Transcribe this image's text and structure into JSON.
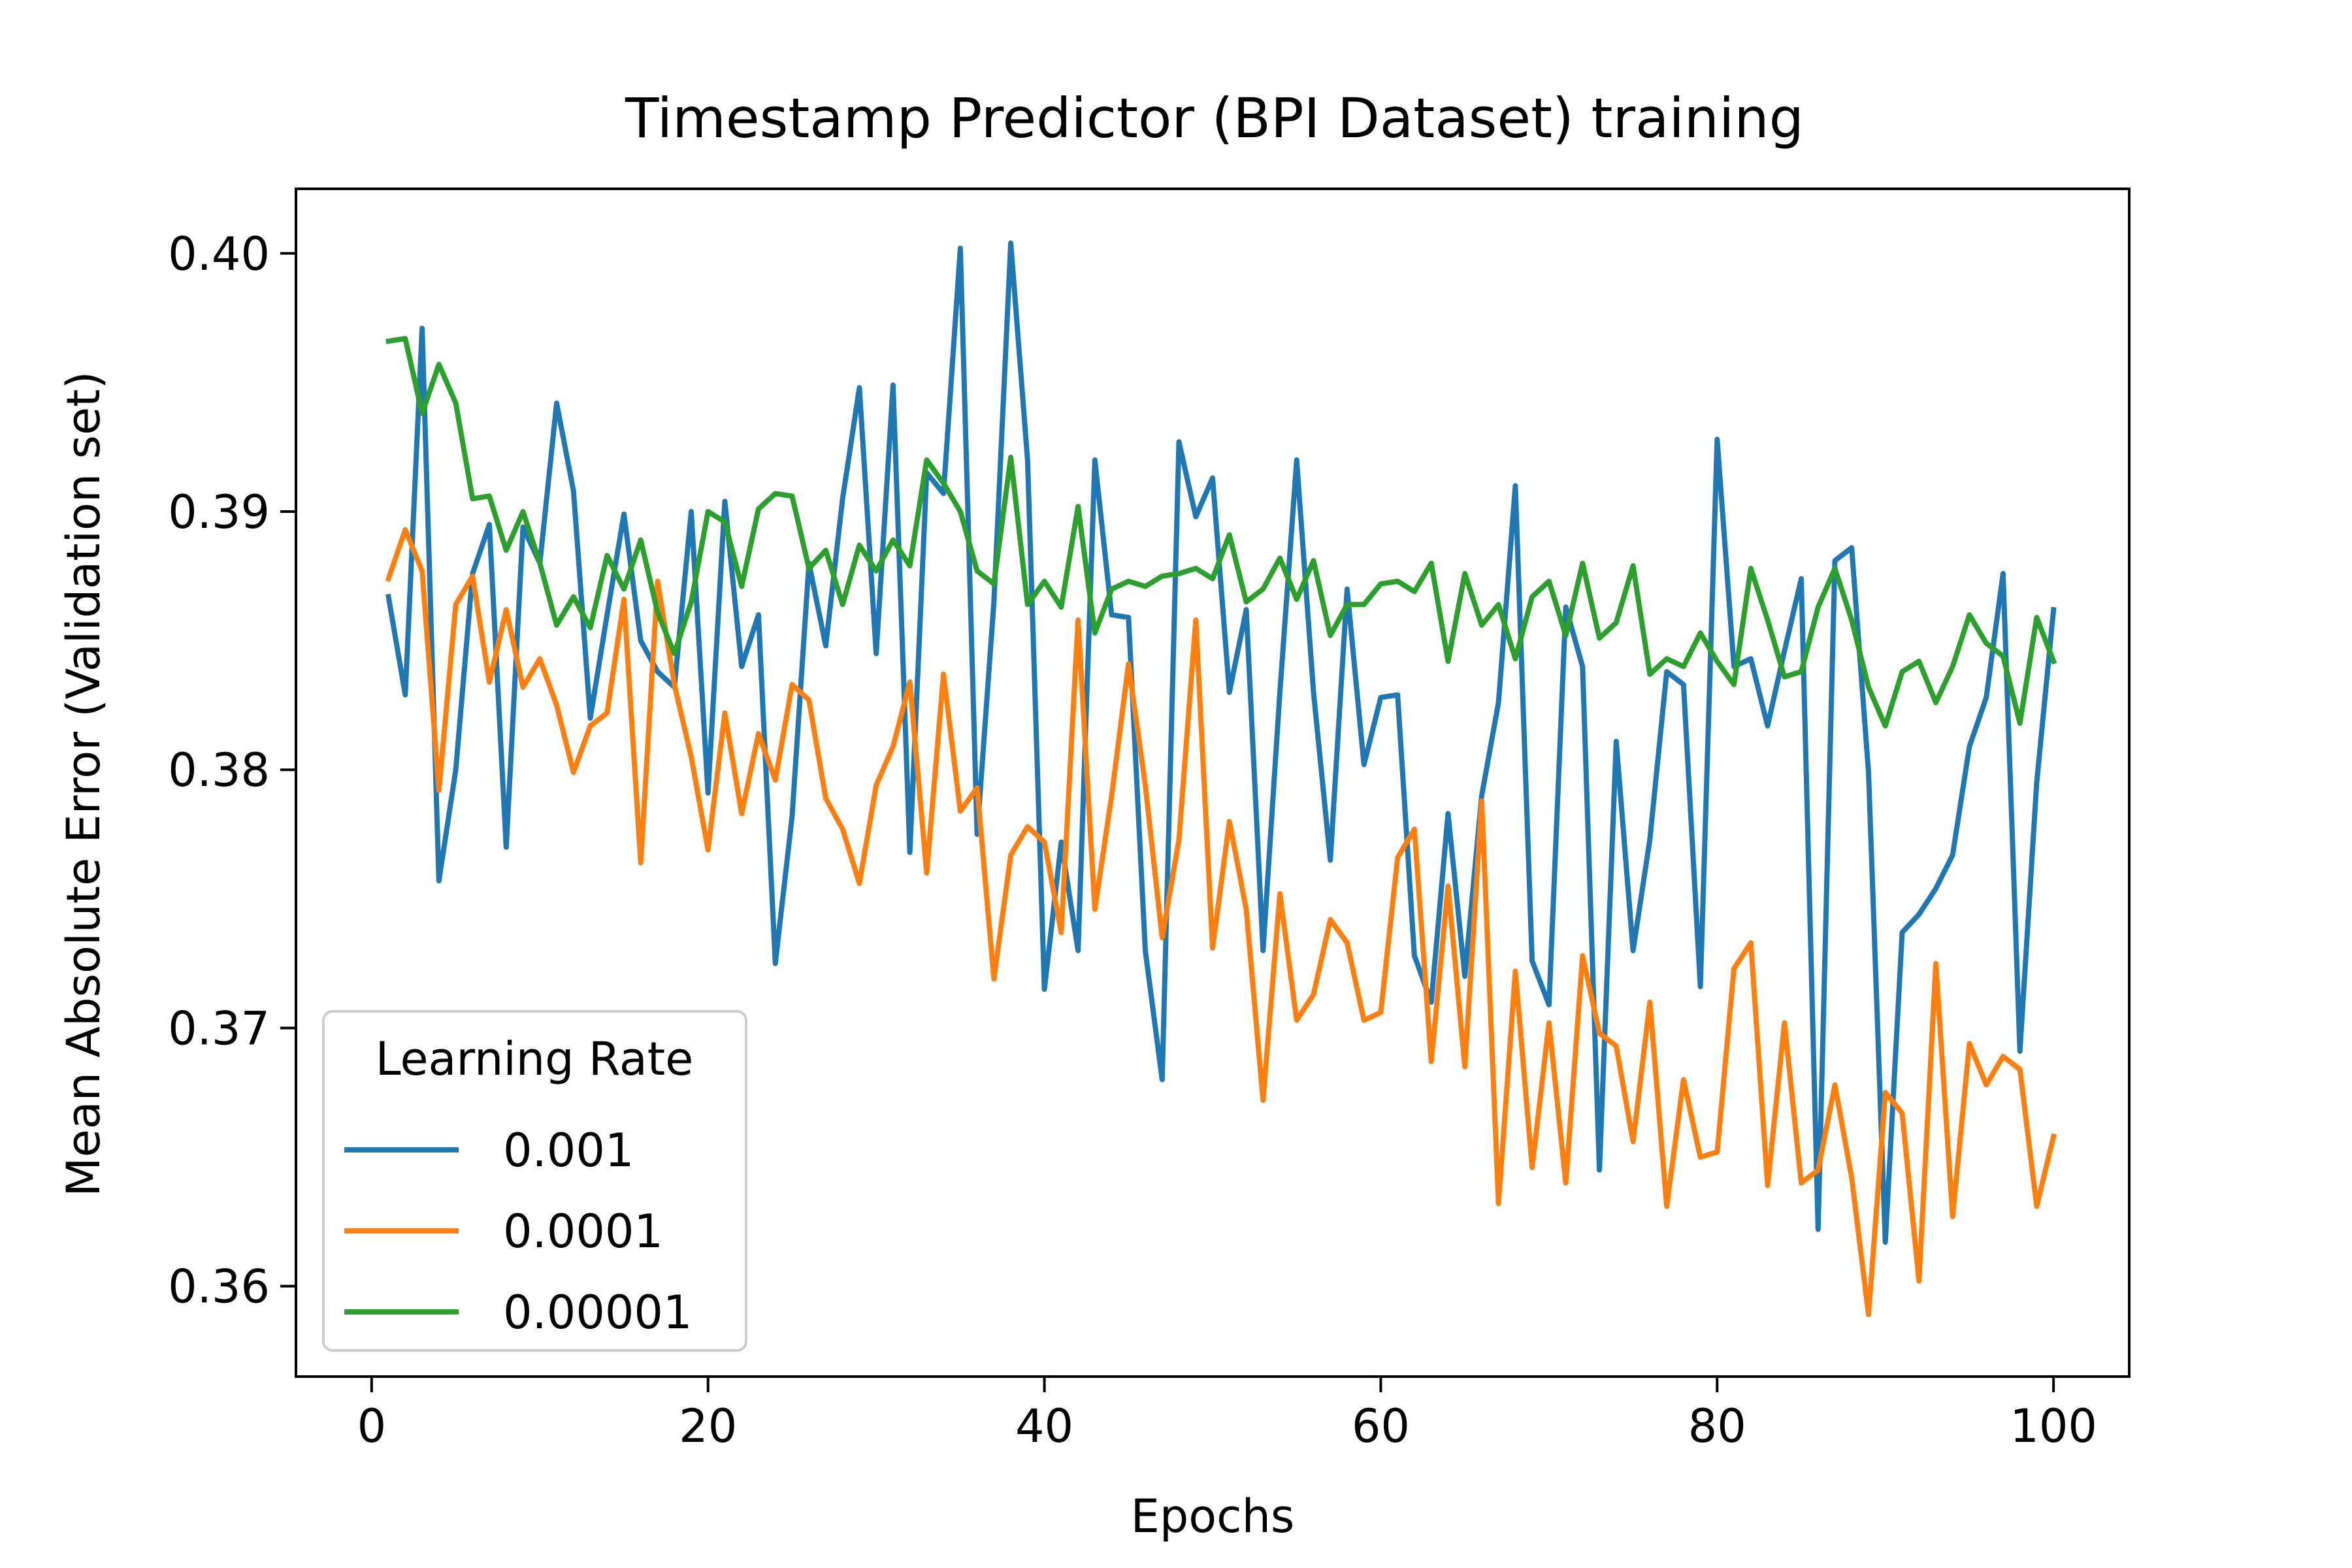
{
  "chart_data": {
    "type": "line",
    "title": "Timestamp Predictor (BPI Dataset) training",
    "xlabel": "Epochs",
    "ylabel": "Mean Absolute Error (Validation set)",
    "xlim": [
      -4.5,
      104.5
    ],
    "ylim": [
      0.3565,
      0.4025
    ],
    "xticks": [
      0,
      20,
      40,
      60,
      80,
      100
    ],
    "xtick_labels": [
      "0",
      "20",
      "40",
      "60",
      "80",
      "100"
    ],
    "yticks": [
      0.36,
      0.37,
      0.38,
      0.39,
      0.4
    ],
    "ytick_labels": [
      "0.36",
      "0.37",
      "0.38",
      "0.39",
      "0.40"
    ],
    "grid": false,
    "legend": {
      "title": "Learning Rate",
      "placement": "lower-left"
    },
    "x": [
      1,
      2,
      3,
      4,
      5,
      6,
      7,
      8,
      9,
      10,
      11,
      12,
      13,
      14,
      15,
      16,
      17,
      18,
      19,
      20,
      21,
      22,
      23,
      24,
      25,
      26,
      27,
      28,
      29,
      30,
      31,
      32,
      33,
      34,
      35,
      36,
      37,
      38,
      39,
      40,
      41,
      42,
      43,
      44,
      45,
      46,
      47,
      48,
      49,
      50,
      51,
      52,
      53,
      54,
      55,
      56,
      57,
      58,
      59,
      60,
      61,
      62,
      63,
      64,
      65,
      66,
      67,
      68,
      69,
      70,
      71,
      72,
      73,
      74,
      75,
      76,
      77,
      78,
      79,
      80,
      81,
      82,
      83,
      84,
      85,
      86,
      87,
      88,
      89,
      90,
      91,
      92,
      93,
      94,
      95,
      96,
      97,
      98,
      99,
      100
    ],
    "series": [
      {
        "name": "0.001",
        "color": "#1f77b4",
        "values": [
          0.3867,
          0.3829,
          0.3971,
          0.3757,
          0.38,
          0.3876,
          0.3895,
          0.377,
          0.3894,
          0.388,
          0.3942,
          0.3908,
          0.382,
          0.386,
          0.3899,
          0.385,
          0.3838,
          0.3832,
          0.39,
          0.3791,
          0.3904,
          0.384,
          0.386,
          0.3725,
          0.3782,
          0.388,
          0.3848,
          0.3905,
          0.3948,
          0.3845,
          0.3949,
          0.3768,
          0.3915,
          0.3907,
          0.4002,
          0.3775,
          0.3865,
          0.4004,
          0.392,
          0.3715,
          0.3772,
          0.373,
          0.392,
          0.386,
          0.3859,
          0.373,
          0.368,
          0.3927,
          0.3898,
          0.3913,
          0.383,
          0.3862,
          0.373,
          0.383,
          0.392,
          0.383,
          0.3765,
          0.387,
          0.3802,
          0.3828,
          0.3829,
          0.3728,
          0.371,
          0.3783,
          0.372,
          0.379,
          0.3826,
          0.391,
          0.3726,
          0.3709,
          0.3863,
          0.384,
          0.3645,
          0.3811,
          0.373,
          0.3773,
          0.3838,
          0.3833,
          0.3716,
          0.3928,
          0.384,
          0.3843,
          0.3817,
          0.3846,
          0.3874,
          0.3622,
          0.3881,
          0.3886,
          0.3799,
          0.3617,
          0.3737,
          0.3744,
          0.3754,
          0.3767,
          0.3809,
          0.3828,
          0.3876,
          0.3691,
          0.3795,
          0.3862
        ]
      },
      {
        "name": "0.0001",
        "color": "#ff7f0e",
        "values": [
          0.3874,
          0.3893,
          0.3877,
          0.3792,
          0.3864,
          0.3875,
          0.3834,
          0.3862,
          0.3832,
          0.3843,
          0.3825,
          0.3799,
          0.3817,
          0.3822,
          0.3866,
          0.3764,
          0.3873,
          0.3833,
          0.3805,
          0.3769,
          0.3822,
          0.3783,
          0.3814,
          0.3796,
          0.3833,
          0.3827,
          0.3789,
          0.3777,
          0.3756,
          0.3794,
          0.3809,
          0.3834,
          0.376,
          0.3837,
          0.3784,
          0.3793,
          0.3719,
          0.3767,
          0.3778,
          0.3772,
          0.3737,
          0.3858,
          0.3746,
          0.379,
          0.3841,
          0.3794,
          0.3735,
          0.3773,
          0.3858,
          0.3731,
          0.378,
          0.3746,
          0.3672,
          0.3752,
          0.3703,
          0.3713,
          0.3742,
          0.3733,
          0.3703,
          0.3706,
          0.3766,
          0.3777,
          0.3687,
          0.3755,
          0.3685,
          0.3788,
          0.3632,
          0.3722,
          0.3646,
          0.3702,
          0.364,
          0.3728,
          0.3698,
          0.3693,
          0.3656,
          0.371,
          0.3631,
          0.368,
          0.365,
          0.3652,
          0.3723,
          0.3733,
          0.3639,
          0.3702,
          0.364,
          0.3645,
          0.3678,
          0.3642,
          0.3589,
          0.3675,
          0.3667,
          0.3602,
          0.3725,
          0.3627,
          0.3694,
          0.3678,
          0.3689,
          0.3684,
          0.3631,
          0.3658
        ]
      },
      {
        "name": "0.00001",
        "color": "#2ca02c",
        "values": [
          0.3966,
          0.3967,
          0.3938,
          0.3957,
          0.3942,
          0.3905,
          0.3906,
          0.3885,
          0.39,
          0.388,
          0.3856,
          0.3867,
          0.3855,
          0.3883,
          0.387,
          0.3889,
          0.3861,
          0.3845,
          0.3865,
          0.39,
          0.3896,
          0.3871,
          0.3901,
          0.3907,
          0.3906,
          0.3878,
          0.3885,
          0.3864,
          0.3887,
          0.3877,
          0.3889,
          0.3879,
          0.392,
          0.3911,
          0.39,
          0.3877,
          0.3872,
          0.3921,
          0.3864,
          0.3873,
          0.3863,
          0.3902,
          0.3853,
          0.387,
          0.3873,
          0.3871,
          0.3875,
          0.3876,
          0.3878,
          0.3874,
          0.3891,
          0.3865,
          0.387,
          0.3882,
          0.3866,
          0.3881,
          0.3852,
          0.3864,
          0.3864,
          0.3872,
          0.3873,
          0.3869,
          0.388,
          0.3842,
          0.3876,
          0.3856,
          0.3864,
          0.3843,
          0.3867,
          0.3873,
          0.3852,
          0.388,
          0.3851,
          0.3857,
          0.3879,
          0.3837,
          0.3843,
          0.384,
          0.3853,
          0.3842,
          0.3833,
          0.3878,
          0.3858,
          0.3836,
          0.3838,
          0.3863,
          0.3878,
          0.3858,
          0.3832,
          0.3817,
          0.3838,
          0.3842,
          0.3826,
          0.384,
          0.386,
          0.3849,
          0.3844,
          0.3818,
          0.3859,
          0.3842
        ]
      }
    ]
  }
}
